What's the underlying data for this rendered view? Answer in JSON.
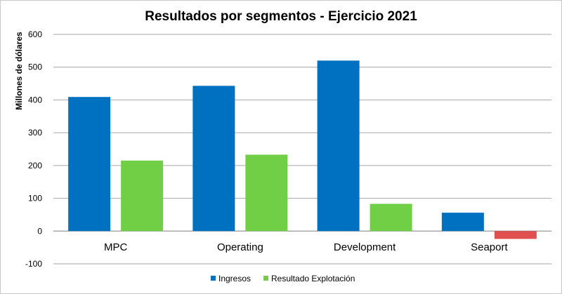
{
  "chart_data": {
    "type": "bar",
    "title": "Resultados por segmentos - Ejercicio 2021",
    "xlabel": "",
    "ylabel": "Millones de dólares",
    "categories": [
      "MPC",
      "Operating",
      "Development",
      "Seaport"
    ],
    "series": [
      {
        "name": "Ingresos",
        "values": [
          409,
          443,
          520,
          56
        ],
        "color": "#0070C0"
      },
      {
        "name": "Resultado Explotación",
        "values": [
          215,
          233,
          83,
          -24
        ],
        "color": "#70CF44",
        "negative_color": "#E05050"
      }
    ],
    "ylim": [
      -100,
      600
    ],
    "yticks": [
      -100,
      0,
      100,
      200,
      300,
      400,
      500,
      600
    ],
    "grid": true,
    "legend_position": "bottom"
  }
}
